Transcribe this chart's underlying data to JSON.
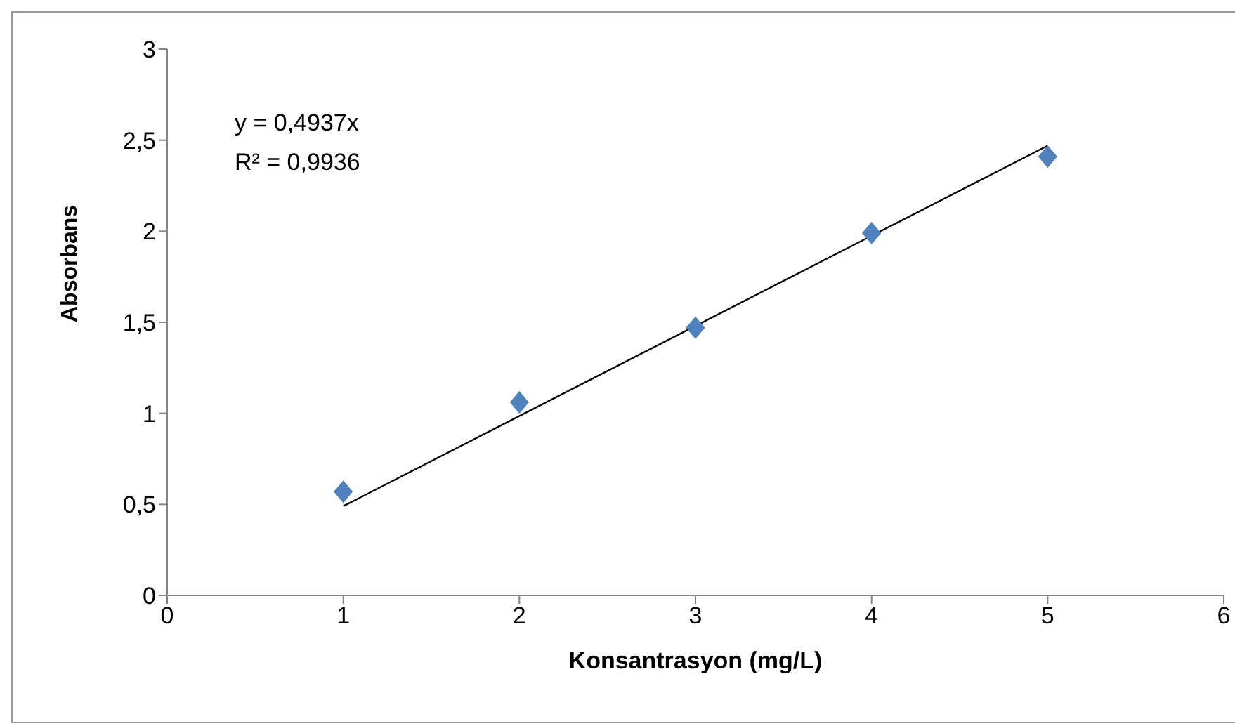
{
  "chart_data": {
    "type": "scatter",
    "xlabel": "Konsantrasyon (mg/L)",
    "ylabel": "Absorbans",
    "annotations": [
      "y = 0,4937x",
      "R² = 0,9936"
    ],
    "x": [
      1,
      2,
      3,
      4,
      5
    ],
    "series": [
      {
        "color": "#4f81bd",
        "marker": "diamond",
        "values": [
          0.57,
          1.06,
          1.47,
          1.99,
          2.41
        ]
      },
      {
        "type": "line",
        "color": "#000000",
        "marker": "none",
        "line_style": "solid",
        "x": [
          1,
          5
        ],
        "values": [
          0.49,
          2.47
        ]
      }
    ],
    "xlim": [
      0,
      6
    ],
    "xticks": [
      0,
      1,
      2,
      3,
      4,
      5,
      6
    ],
    "ylim": [
      0,
      3
    ],
    "yticks": [
      0,
      {
        "value": 0.5,
        "label": "0,5"
      },
      1,
      {
        "value": 1.5,
        "label": "1,5"
      },
      2,
      {
        "value": 2.5,
        "label": "2,5"
      },
      3
    ],
    "grid": false,
    "legend": false
  }
}
